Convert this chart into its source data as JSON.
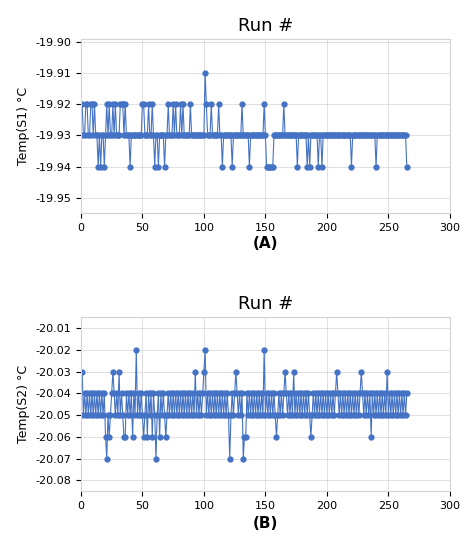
{
  "title_A": "Run #",
  "title_B": "Run #",
  "ylabel_A": "Temp(S1) °C",
  "ylabel_B": "Temp(S2) °C",
  "label_A": "(A)",
  "label_B": "(B)",
  "xlim": [
    0,
    300
  ],
  "xticks": [
    0,
    50,
    100,
    150,
    200,
    250,
    300
  ],
  "ylim_A": [
    -19.955,
    -19.899
  ],
  "yticks_A": [
    -19.95,
    -19.94,
    -19.93,
    -19.92,
    -19.91,
    -19.9
  ],
  "ylim_B": [
    -20.085,
    -20.005
  ],
  "yticks_B": [
    -20.08,
    -20.07,
    -20.06,
    -20.05,
    -20.04,
    -20.03,
    -20.02,
    -20.01
  ],
  "color": "#4472C4",
  "markersize": 3.5,
  "linewidth": 0.8
}
